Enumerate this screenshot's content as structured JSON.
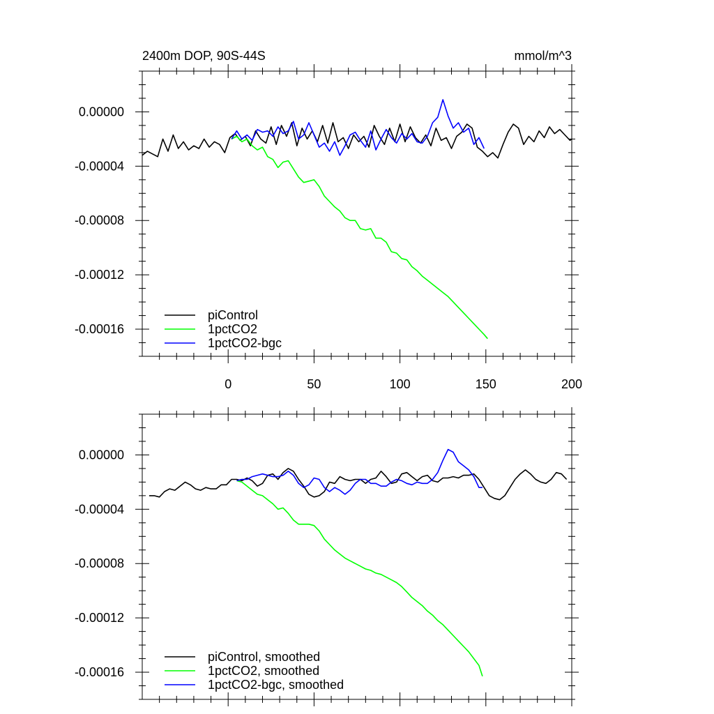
{
  "chart_data": [
    {
      "type": "line",
      "title": "2400m DOP, 90S-44S",
      "units": "mmol/m^3",
      "xlim": [
        -50,
        200
      ],
      "ylim": [
        -0.00018,
        3e-05
      ],
      "x_ticks": [
        0,
        50,
        100,
        150,
        200
      ],
      "x_tick_labels": [
        "0",
        "50",
        "100",
        "150",
        "200"
      ],
      "y_ticks": [
        0,
        -4e-05,
        -8e-05,
        -0.00012,
        -0.00016
      ],
      "y_tick_labels": [
        "0.00000",
        "-0.00004",
        "-0.00008",
        "-0.00012",
        "-0.00016"
      ],
      "legend_position": "bottom-left",
      "series": [
        {
          "name": "piControl",
          "color": "#000000",
          "x": [
            -50,
            -47,
            -44,
            -41,
            -38,
            -35,
            -32,
            -29,
            -26,
            -23,
            -20,
            -17,
            -14,
            -11,
            -8,
            -5,
            -2,
            1,
            4,
            7,
            10,
            13,
            16,
            19,
            22,
            25,
            28,
            31,
            34,
            37,
            40,
            43,
            46,
            49,
            52,
            55,
            58,
            61,
            64,
            67,
            70,
            73,
            76,
            79,
            82,
            85,
            88,
            91,
            94,
            97,
            100,
            103,
            106,
            109,
            112,
            115,
            118,
            121,
            124,
            127,
            130,
            133,
            136,
            139,
            142,
            145,
            148,
            151,
            154,
            157,
            160,
            163,
            166,
            169,
            172,
            175,
            178,
            181,
            184,
            187,
            190,
            193,
            196,
            199,
            200
          ],
          "y": [
            -3.2e-05,
            -2.9e-05,
            -3.1e-05,
            -3.3e-05,
            -2e-05,
            -2.9e-05,
            -1.7e-05,
            -2.7e-05,
            -2.2e-05,
            -2.8e-05,
            -2.5e-05,
            -2.7e-05,
            -2e-05,
            -2.6e-05,
            -2.2e-05,
            -2.4e-05,
            -3e-05,
            -1.9e-05,
            -1.6e-05,
            -2.1e-05,
            -1.8e-05,
            -2.5e-05,
            -1.4e-05,
            -2e-05,
            -2.3e-05,
            -1.1e-05,
            -2.4e-05,
            -1e-05,
            -1.8e-05,
            -8e-06,
            -2.5e-05,
            -1.2e-05,
            -2e-05,
            -1.4e-05,
            -2.2e-05,
            -1e-05,
            -2.3e-05,
            -8e-06,
            -2.2e-05,
            -1.9e-05,
            -2.7e-05,
            -1.7e-05,
            -2.2e-05,
            -1.8e-05,
            -2.6e-05,
            -1e-05,
            -1.8e-05,
            -2.4e-05,
            -1.2e-05,
            -2.2e-05,
            -9e-06,
            -2.2e-05,
            -1.1e-05,
            -1.9e-05,
            -2.3e-05,
            -1.7e-05,
            -2.5e-05,
            -1.2e-05,
            -2.1e-05,
            -1.9e-05,
            -2.7e-05,
            -1.8e-05,
            -1.5e-05,
            -9e-06,
            -1.2e-05,
            -2.6e-05,
            -2.9e-05,
            -3.3e-05,
            -3e-05,
            -3.4e-05,
            -2.4e-05,
            -1.5e-05,
            -9e-06,
            -1.2e-05,
            -2.4e-05,
            -1.8e-05,
            -2.2e-05,
            -1.4e-05,
            -1.9e-05,
            -1.1e-05,
            -1.6e-05,
            -1.3e-05,
            -1.7e-05,
            -2.1e-05,
            -2e-05
          ]
        },
        {
          "name": "1pctCO2",
          "color": "#00ff00",
          "x": [
            2,
            5,
            8,
            11,
            14,
            17,
            20,
            23,
            26,
            29,
            32,
            35,
            38,
            41,
            44,
            47,
            50,
            53,
            56,
            59,
            62,
            65,
            68,
            71,
            74,
            77,
            80,
            83,
            86,
            89,
            92,
            95,
            98,
            101,
            104,
            107,
            110,
            113,
            116,
            119,
            122,
            125,
            128,
            131,
            134,
            137,
            140,
            143,
            146,
            149,
            151
          ],
          "y": [
            -2e-05,
            -1.8e-05,
            -2.2e-05,
            -2e-05,
            -2.5e-05,
            -2.8e-05,
            -2.6e-05,
            -3.3e-05,
            -3.5e-05,
            -4.1e-05,
            -3.7e-05,
            -3.6e-05,
            -4.2e-05,
            -4.8e-05,
            -5.2e-05,
            -5.1e-05,
            -5e-05,
            -5.5e-05,
            -6.2e-05,
            -6.6e-05,
            -7e-05,
            -7.3e-05,
            -7.8e-05,
            -8e-05,
            -8e-05,
            -8.6e-05,
            -8.7e-05,
            -8.6e-05,
            -9.3e-05,
            -9.3e-05,
            -9.6e-05,
            -0.000103,
            -0.000104,
            -0.000108,
            -0.000109,
            -0.000114,
            -0.000117,
            -0.000121,
            -0.000124,
            -0.000127,
            -0.00013,
            -0.000133,
            -0.000136,
            -0.00014,
            -0.000144,
            -0.000148,
            -0.000152,
            -0.000156,
            -0.00016,
            -0.000164,
            -0.000167
          ]
        },
        {
          "name": "1pctCO2-bgc",
          "color": "#0000ff",
          "x": [
            2,
            5,
            8,
            11,
            14,
            17,
            20,
            23,
            26,
            29,
            32,
            35,
            38,
            41,
            44,
            47,
            50,
            53,
            56,
            59,
            62,
            65,
            68,
            71,
            74,
            77,
            80,
            83,
            86,
            89,
            92,
            95,
            98,
            101,
            104,
            107,
            110,
            113,
            116,
            119,
            122,
            125,
            128,
            131,
            134,
            137,
            140,
            143,
            146,
            149
          ],
          "y": [
            -2e-05,
            -1.4e-05,
            -2e-05,
            -1.7e-05,
            -2.1e-05,
            -1.3e-05,
            -1.5e-05,
            -1.4e-05,
            -1.8e-05,
            -1.1e-05,
            -1.6e-05,
            -1.4e-05,
            -7e-06,
            -2e-05,
            -1.7e-05,
            -8e-06,
            -1.7e-05,
            -2.6e-05,
            -2.3e-05,
            -2.9e-05,
            -2.2e-05,
            -3.2e-05,
            -2.5e-05,
            -1.7e-05,
            -1.5e-05,
            -2.1e-05,
            -2.6e-05,
            -1.4e-05,
            -2.8e-05,
            -2e-05,
            -1.3e-05,
            -1.9e-05,
            -2.3e-05,
            -1.6e-05,
            -2e-05,
            -1.6e-05,
            -2.2e-05,
            -2.3e-05,
            -1.8e-05,
            -8e-06,
            -4e-06,
            9e-06,
            -3e-06,
            -1.2e-05,
            -8e-06,
            -1.5e-05,
            -1.2e-05,
            -2.4e-05,
            -1.9e-05,
            -2.7e-05
          ]
        }
      ]
    },
    {
      "type": "line",
      "title": "",
      "xlim": [
        -50,
        200
      ],
      "ylim": [
        -0.00018,
        3e-05
      ],
      "x_ticks": [
        0,
        50,
        100,
        150,
        200
      ],
      "x_tick_labels": [],
      "y_ticks": [
        0,
        -4e-05,
        -8e-05,
        -0.00012,
        -0.00016
      ],
      "y_tick_labels": [
        "0.00000",
        "-0.00004",
        "-0.00008",
        "-0.00012",
        "-0.00016"
      ],
      "legend_position": "bottom-left",
      "series": [
        {
          "name": "piControl, smoothed",
          "color": "#000000",
          "x": [
            -46,
            -43,
            -40,
            -37,
            -34,
            -31,
            -28,
            -25,
            -22,
            -19,
            -16,
            -13,
            -10,
            -7,
            -4,
            -1,
            2,
            5,
            8,
            11,
            14,
            17,
            20,
            23,
            26,
            29,
            32,
            35,
            38,
            41,
            44,
            47,
            50,
            53,
            56,
            59,
            62,
            65,
            68,
            71,
            74,
            77,
            80,
            83,
            86,
            89,
            92,
            95,
            98,
            101,
            104,
            107,
            110,
            113,
            116,
            119,
            122,
            125,
            128,
            131,
            134,
            137,
            140,
            143,
            146,
            149,
            152,
            155,
            158,
            161,
            164,
            167,
            170,
            173,
            176,
            179,
            182,
            185,
            188,
            191,
            194,
            197
          ],
          "y": [
            -3e-05,
            -3e-05,
            -3.1e-05,
            -2.7e-05,
            -2.5e-05,
            -2.6e-05,
            -2.3e-05,
            -2e-05,
            -2.2e-05,
            -2.5e-05,
            -2.6e-05,
            -2.4e-05,
            -2.5e-05,
            -2.5e-05,
            -2.2e-05,
            -2.2e-05,
            -1.8e-05,
            -1.8e-05,
            -1.9e-05,
            -1.7e-05,
            -1.9e-05,
            -2.3e-05,
            -2.1e-05,
            -1.5e-05,
            -1.4e-05,
            -1.8e-05,
            -1.3e-05,
            -1e-05,
            -1.2e-05,
            -1.8e-05,
            -2.3e-05,
            -2.9e-05,
            -3.1e-05,
            -3e-05,
            -2.7e-05,
            -2e-05,
            -2.1e-05,
            -1.6e-05,
            -1.8e-05,
            -1.9e-05,
            -1.8e-05,
            -1.8e-05,
            -2.1e-05,
            -1.8e-05,
            -1.7e-05,
            -1.2e-05,
            -1.6e-05,
            -2.1e-05,
            -2e-05,
            -1.4e-05,
            -1.3e-05,
            -1.6e-05,
            -1.9e-05,
            -1.6e-05,
            -1.5e-05,
            -1.9e-05,
            -2e-05,
            -1.7e-05,
            -1.7e-05,
            -1.6e-05,
            -1.7e-05,
            -1.5e-05,
            -1.5e-05,
            -1.4e-05,
            -1.8e-05,
            -2.4e-05,
            -3e-05,
            -3.2e-05,
            -3.3e-05,
            -3e-05,
            -2.4e-05,
            -1.8e-05,
            -1.4e-05,
            -1.1e-05,
            -1.4e-05,
            -1.8e-05,
            -2e-05,
            -2.1e-05,
            -1.8e-05,
            -1.3e-05,
            -1.4e-05,
            -1.8e-05
          ]
        },
        {
          "name": "1pctCO2, smoothed",
          "color": "#00ff00",
          "x": [
            5,
            8,
            11,
            14,
            17,
            20,
            23,
            26,
            29,
            32,
            35,
            38,
            41,
            44,
            47,
            50,
            53,
            56,
            59,
            62,
            65,
            68,
            71,
            74,
            77,
            80,
            83,
            86,
            89,
            92,
            95,
            98,
            101,
            104,
            107,
            110,
            113,
            116,
            119,
            122,
            125,
            128,
            131,
            134,
            137,
            140,
            143,
            146,
            148
          ],
          "y": [
            -1.9e-05,
            -2e-05,
            -2.3e-05,
            -2.6e-05,
            -2.9e-05,
            -3e-05,
            -3.3e-05,
            -3.6e-05,
            -4e-05,
            -3.9e-05,
            -4.3e-05,
            -4.8e-05,
            -5.1e-05,
            -5.1e-05,
            -5.1e-05,
            -5.2e-05,
            -5.6e-05,
            -6.2e-05,
            -6.6e-05,
            -7e-05,
            -7.3e-05,
            -7.6e-05,
            -7.8e-05,
            -8e-05,
            -8.2e-05,
            -8.4e-05,
            -8.5e-05,
            -8.7e-05,
            -8.8e-05,
            -9e-05,
            -9.2e-05,
            -9.4e-05,
            -9.7e-05,
            -0.000101,
            -0.000105,
            -0.000108,
            -0.000111,
            -0.000115,
            -0.000118,
            -0.000122,
            -0.000125,
            -0.000129,
            -0.000133,
            -0.000137,
            -0.000141,
            -0.000145,
            -0.00015,
            -0.000155,
            -0.000163
          ]
        },
        {
          "name": "1pctCO2-bgc, smoothed",
          "color": "#0000ff",
          "x": [
            5,
            8,
            11,
            14,
            17,
            20,
            23,
            26,
            29,
            32,
            35,
            38,
            41,
            44,
            47,
            50,
            53,
            56,
            59,
            62,
            65,
            68,
            71,
            74,
            77,
            80,
            83,
            86,
            89,
            92,
            95,
            98,
            101,
            104,
            107,
            110,
            113,
            116,
            119,
            122,
            125,
            128,
            131,
            134,
            137,
            140,
            143,
            146,
            148
          ],
          "y": [
            -1.9e-05,
            -1.8e-05,
            -1.8e-05,
            -1.6e-05,
            -1.5e-05,
            -1.4e-05,
            -1.5e-05,
            -1.6e-05,
            -1.6e-05,
            -1.5e-05,
            -1.2e-05,
            -1.5e-05,
            -2.1e-05,
            -2.4e-05,
            -2.2e-05,
            -1.7e-05,
            -1.8e-05,
            -2.4e-05,
            -2.7e-05,
            -2.4e-05,
            -2.6e-05,
            -2.9e-05,
            -2.6e-05,
            -2.1e-05,
            -1.8e-05,
            -1.8e-05,
            -2.1e-05,
            -2.1e-05,
            -2.3e-05,
            -2.3e-05,
            -2e-05,
            -1.8e-05,
            -1.9e-05,
            -2.1e-05,
            -2.2e-05,
            -2e-05,
            -2.1e-05,
            -2.1e-05,
            -1.8e-05,
            -1.3e-05,
            -4e-06,
            4e-06,
            2e-06,
            -5e-06,
            -8e-06,
            -1.1e-05,
            -1.6e-05,
            -2.4e-05,
            -2.4e-05
          ]
        }
      ]
    }
  ]
}
